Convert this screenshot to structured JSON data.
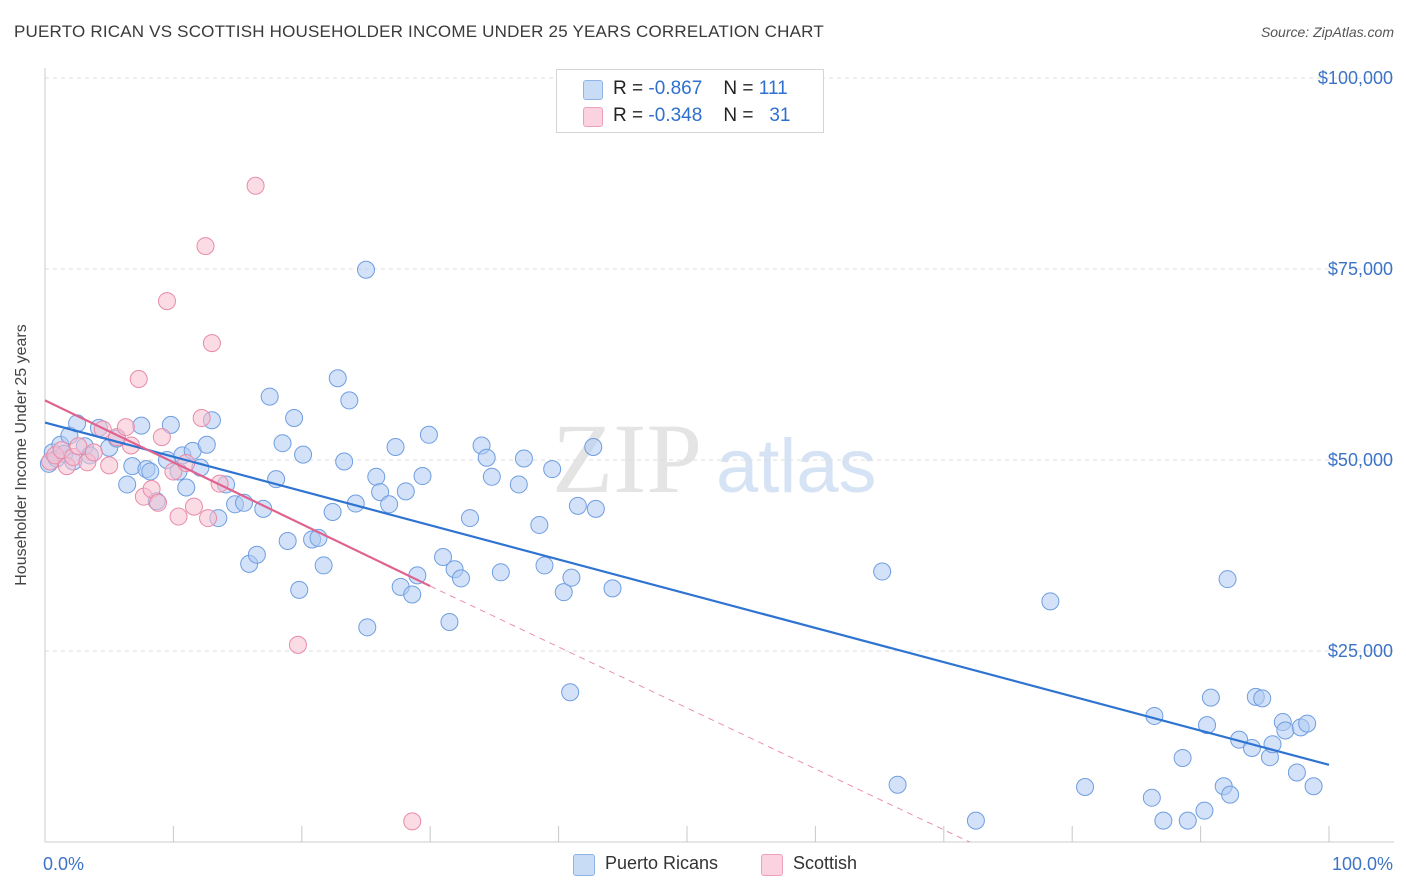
{
  "title": "PUERTO RICAN VS SCOTTISH HOUSEHOLDER INCOME UNDER 25 YEARS CORRELATION CHART",
  "source": "Source: ZipAtlas.com",
  "watermark": {
    "zip": "ZIP",
    "atlas": "atlas"
  },
  "legend": {
    "rows": [
      {
        "r_label": "R =",
        "r_value": "-0.867",
        "n_label": "N =",
        "n_value": "111",
        "color": "#aecbf2"
      },
      {
        "r_label": "R =",
        "r_value": "-0.348",
        "n_label": "N =",
        "n_value": "31",
        "color": "#f7bfd0"
      }
    ]
  },
  "bottom_legend": [
    {
      "label": "Puerto Ricans",
      "color": "#aecbf2"
    },
    {
      "label": "Scottish",
      "color": "#f7bfd0"
    }
  ],
  "colors": {
    "blue_fill": "#aecbf2",
    "blue_stroke": "#6f9ee0",
    "blue_line": "#2f74d0",
    "pink_fill": "#f7bfd0",
    "pink_stroke": "#e88aa8",
    "pink_line": "#e0628f",
    "grid": "#dddddd",
    "axis_text": "#3d73c6"
  },
  "chart_data": {
    "type": "scatter",
    "title": "PUERTO RICAN VS SCOTTISH HOUSEHOLDER INCOME UNDER 25 YEARS CORRELATION CHART",
    "xlabel": "",
    "ylabel": "Householder Income Under 25 years",
    "xlim": [
      0,
      100
    ],
    "ylim": [
      0,
      105000
    ],
    "x_tick_labels": [
      "0.0%",
      "100.0%"
    ],
    "y_ticks": [
      {
        "value": 25000,
        "label": "$25,000"
      },
      {
        "value": 50000,
        "label": "$50,000"
      },
      {
        "value": 75000,
        "label": "$75,000"
      },
      {
        "value": 100000,
        "label": "$100,000"
      }
    ],
    "grid": true,
    "series": [
      {
        "name": "Puerto Ricans",
        "r": -0.867,
        "n": 111,
        "trend": {
          "x": [
            0,
            100
          ],
          "y": [
            54900,
            10100
          ]
        },
        "points": [
          [
            0.3,
            49500
          ],
          [
            0.6,
            51000
          ],
          [
            0.9,
            50200
          ],
          [
            1.2,
            52000
          ],
          [
            1.5,
            50800
          ],
          [
            1.9,
            53200
          ],
          [
            2.2,
            49800
          ],
          [
            2.5,
            54800
          ],
          [
            3.1,
            51800
          ],
          [
            3.5,
            50600
          ],
          [
            4.2,
            54200
          ],
          [
            5,
            51600
          ],
          [
            5.6,
            52800
          ],
          [
            6.4,
            46800
          ],
          [
            6.8,
            49200
          ],
          [
            7.5,
            54500
          ],
          [
            7.9,
            48800
          ],
          [
            8.2,
            48500
          ],
          [
            8.7,
            44600
          ],
          [
            9.5,
            50000
          ],
          [
            9.8,
            54600
          ],
          [
            10.4,
            48500
          ],
          [
            10.7,
            50600
          ],
          [
            11,
            46400
          ],
          [
            11.5,
            51200
          ],
          [
            12.1,
            49000
          ],
          [
            12.6,
            52000
          ],
          [
            13,
            55200
          ],
          [
            13.5,
            42400
          ],
          [
            14.1,
            46800
          ],
          [
            14.8,
            44200
          ],
          [
            15.5,
            44400
          ],
          [
            15.9,
            36400
          ],
          [
            16.5,
            37600
          ],
          [
            17,
            43600
          ],
          [
            17.5,
            58300
          ],
          [
            18,
            47500
          ],
          [
            18.5,
            52200
          ],
          [
            18.9,
            39400
          ],
          [
            19.4,
            55500
          ],
          [
            19.8,
            33000
          ],
          [
            20.1,
            50700
          ],
          [
            20.8,
            39600
          ],
          [
            21.3,
            39800
          ],
          [
            21.7,
            36200
          ],
          [
            22.4,
            43200
          ],
          [
            22.8,
            60700
          ],
          [
            23.3,
            49800
          ],
          [
            23.7,
            57800
          ],
          [
            24.2,
            44300
          ],
          [
            25,
            74900
          ],
          [
            25.1,
            28100
          ],
          [
            25.8,
            47800
          ],
          [
            26.1,
            45800
          ],
          [
            26.8,
            44200
          ],
          [
            27.3,
            51700
          ],
          [
            27.7,
            33400
          ],
          [
            28.1,
            45900
          ],
          [
            28.6,
            32400
          ],
          [
            29,
            34900
          ],
          [
            29.4,
            47900
          ],
          [
            29.9,
            53300
          ],
          [
            31,
            37300
          ],
          [
            31.5,
            28800
          ],
          [
            31.9,
            35700
          ],
          [
            32.4,
            34500
          ],
          [
            33.1,
            42400
          ],
          [
            34,
            51900
          ],
          [
            34.4,
            50300
          ],
          [
            34.8,
            47800
          ],
          [
            35.5,
            35300
          ],
          [
            36.9,
            46800
          ],
          [
            37.3,
            50200
          ],
          [
            38.5,
            41500
          ],
          [
            38.9,
            36200
          ],
          [
            39.5,
            48800
          ],
          [
            40.4,
            32700
          ],
          [
            40.9,
            19600
          ],
          [
            41,
            34600
          ],
          [
            41.5,
            44000
          ],
          [
            42.7,
            51700
          ],
          [
            42.9,
            43600
          ],
          [
            44.2,
            33200
          ],
          [
            65.2,
            35400
          ],
          [
            66.4,
            7500
          ],
          [
            72.5,
            2800
          ],
          [
            78.3,
            31500
          ],
          [
            81,
            7200
          ],
          [
            86.2,
            5800
          ],
          [
            86.4,
            16500
          ],
          [
            87.1,
            2800
          ],
          [
            88.6,
            11000
          ],
          [
            89,
            2800
          ],
          [
            90.3,
            4100
          ],
          [
            90.5,
            15300
          ],
          [
            90.8,
            18900
          ],
          [
            91.8,
            7300
          ],
          [
            92.1,
            34400
          ],
          [
            92.3,
            6200
          ],
          [
            93,
            13400
          ],
          [
            94,
            12300
          ],
          [
            94.3,
            19000
          ],
          [
            94.8,
            18800
          ],
          [
            95.4,
            11100
          ],
          [
            95.6,
            12800
          ],
          [
            96.4,
            15700
          ],
          [
            96.6,
            14600
          ],
          [
            97.5,
            9100
          ],
          [
            97.8,
            15000
          ],
          [
            98.3,
            15500
          ],
          [
            98.8,
            7300
          ]
        ]
      },
      {
        "name": "Scottish",
        "r": -0.348,
        "n": 31,
        "trend": {
          "x": [
            0,
            30
          ],
          "y": [
            57800,
            33500
          ]
        },
        "trend_extension": {
          "x": [
            30,
            72
          ],
          "y": [
            33500,
            0
          ]
        },
        "points": [
          [
            0.4,
            49800
          ],
          [
            0.8,
            50600
          ],
          [
            1.3,
            51300
          ],
          [
            1.7,
            49200
          ],
          [
            2.2,
            50400
          ],
          [
            2.6,
            51800
          ],
          [
            3.3,
            49700
          ],
          [
            3.8,
            51000
          ],
          [
            4.5,
            54000
          ],
          [
            5,
            49300
          ],
          [
            5.6,
            53000
          ],
          [
            6.3,
            54300
          ],
          [
            6.7,
            51900
          ],
          [
            7.3,
            60600
          ],
          [
            7.7,
            45200
          ],
          [
            8.3,
            46200
          ],
          [
            8.8,
            44400
          ],
          [
            9.1,
            53000
          ],
          [
            9.5,
            70800
          ],
          [
            10,
            48500
          ],
          [
            10.4,
            42600
          ],
          [
            11,
            49600
          ],
          [
            11.6,
            43900
          ],
          [
            12.2,
            55500
          ],
          [
            12.5,
            78000
          ],
          [
            12.7,
            42400
          ],
          [
            13,
            65300
          ],
          [
            13.6,
            46900
          ],
          [
            16.4,
            85900
          ],
          [
            19.7,
            25800
          ],
          [
            28.6,
            2700
          ]
        ]
      }
    ]
  }
}
